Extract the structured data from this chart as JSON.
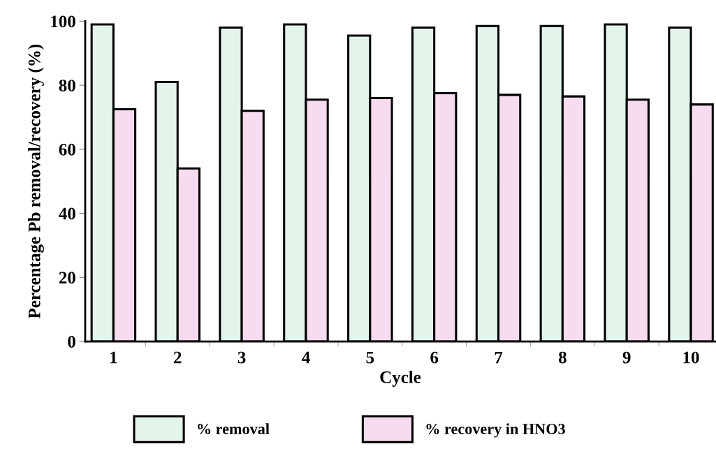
{
  "chart_data": {
    "type": "bar",
    "xlabel": "Cycle",
    "ylabel": "Percentage Pb removal/recovery (%)",
    "categories": [
      "1",
      "2",
      "3",
      "4",
      "5",
      "6",
      "7",
      "8",
      "9",
      "10"
    ],
    "series": [
      {
        "name": "% removal",
        "color": "#e3f4ea",
        "values": [
          99,
          81,
          98,
          99,
          95.5,
          98,
          98.5,
          98.5,
          99,
          98
        ]
      },
      {
        "name": "% recovery in HNO3",
        "color": "#f6dcee",
        "values": [
          72.5,
          54,
          72,
          75.5,
          76,
          77.5,
          77,
          76.5,
          75.5,
          74
        ]
      }
    ],
    "ylim": [
      0,
      100
    ],
    "yticks": [
      0,
      20,
      40,
      60,
      80,
      100
    ],
    "grid": false,
    "legend": "bottom"
  }
}
